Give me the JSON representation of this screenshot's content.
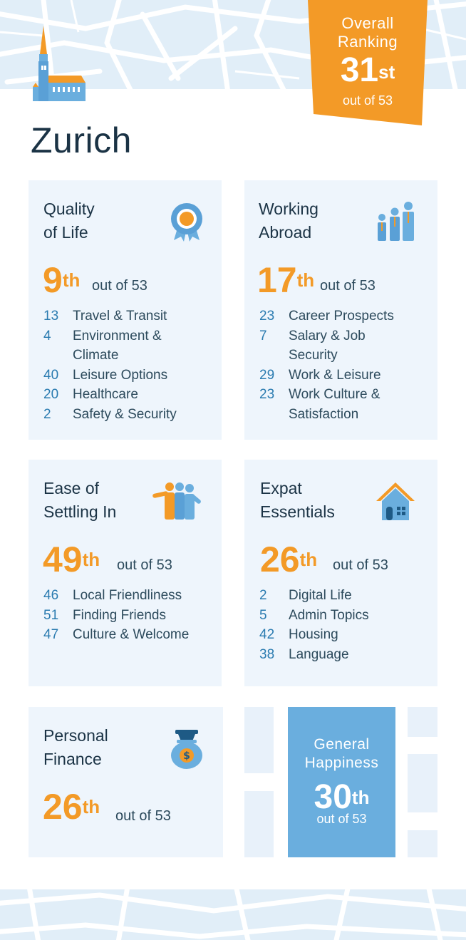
{
  "colors": {
    "accent_orange": "#f39a27",
    "accent_blue": "#6aaede",
    "card_bg": "#eef5fc",
    "map_bg": "#e1eef8",
    "number_blue": "#2a7bb0"
  },
  "city": "Zurich",
  "overall": {
    "title_line1": "Overall",
    "title_line2": "Ranking",
    "rank": "31",
    "suffix": "st",
    "out_of": "out of 53"
  },
  "cards": {
    "quality_of_life": {
      "title_line1": "Quality",
      "title_line2": "of Life",
      "icon": "award-badge-icon",
      "rank": "9",
      "suffix": "th",
      "out_of": "out of 53",
      "items": [
        {
          "num": "13",
          "label": "Travel & Transit"
        },
        {
          "num": "4",
          "label": "Environment & Climate"
        },
        {
          "num": "40",
          "label": "Leisure Options"
        },
        {
          "num": "20",
          "label": "Healthcare"
        },
        {
          "num": "2",
          "label": "Safety & Security"
        }
      ]
    },
    "working_abroad": {
      "title_line1": "Working",
      "title_line2": "Abroad",
      "icon": "business-people-icon",
      "rank": "17",
      "suffix": "th",
      "out_of": "out of 53",
      "items": [
        {
          "num": "23",
          "label": "Career Prospects"
        },
        {
          "num": "7",
          "label": "Salary & Job Security"
        },
        {
          "num": "29",
          "label": "Work & Leisure"
        },
        {
          "num": "23",
          "label": "Work Culture & Satisfaction"
        }
      ]
    },
    "ease_of_settling_in": {
      "title_line1": "Ease of",
      "title_line2": "Settling In",
      "icon": "group-people-icon",
      "rank": "49",
      "suffix": "th",
      "out_of": "out of 53",
      "items": [
        {
          "num": "46",
          "label": "Local Friendliness"
        },
        {
          "num": "51",
          "label": "Finding Friends"
        },
        {
          "num": "47",
          "label": "Culture & Welcome"
        }
      ]
    },
    "expat_essentials": {
      "title_line1": "Expat",
      "title_line2": "Essentials",
      "icon": "house-icon",
      "rank": "26",
      "suffix": "th",
      "out_of": "out of 53",
      "items": [
        {
          "num": "2",
          "label": "Digital Life"
        },
        {
          "num": "5",
          "label": "Admin Topics"
        },
        {
          "num": "42",
          "label": "Housing"
        },
        {
          "num": "38",
          "label": "Language"
        }
      ]
    },
    "personal_finance": {
      "title_line1": "Personal",
      "title_line2": "Finance",
      "icon": "money-bag-icon",
      "rank": "26",
      "suffix": "th",
      "out_of": "out of 53"
    }
  },
  "general_happiness": {
    "title_line1": "General",
    "title_line2": "Happiness",
    "rank": "30",
    "suffix": "th",
    "out_of": "out of 53"
  }
}
